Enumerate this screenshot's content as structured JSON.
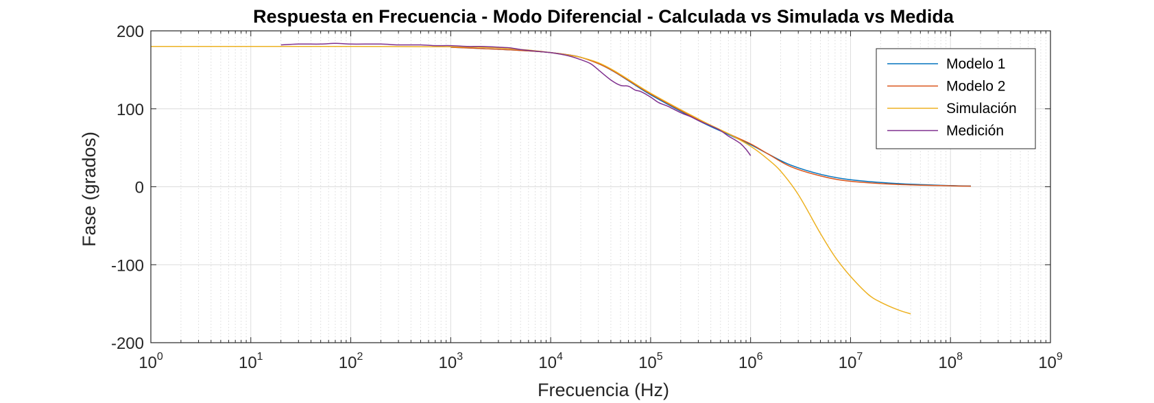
{
  "chart_data": {
    "type": "line",
    "title": "Respuesta en Frecuencia - Modo Diferencial - Calculada vs Simulada vs Medida",
    "xlabel": "Frecuencia (Hz)",
    "ylabel": "Fase (grados)",
    "xscale": "log",
    "xlim": [
      1,
      1000000000
    ],
    "ylim": [
      -200,
      200
    ],
    "x_ticks": [
      {
        "base": "10",
        "exp": "0"
      },
      {
        "base": "10",
        "exp": "1"
      },
      {
        "base": "10",
        "exp": "2"
      },
      {
        "base": "10",
        "exp": "3"
      },
      {
        "base": "10",
        "exp": "4"
      },
      {
        "base": "10",
        "exp": "5"
      },
      {
        "base": "10",
        "exp": "6"
      },
      {
        "base": "10",
        "exp": "7"
      },
      {
        "base": "10",
        "exp": "8"
      },
      {
        "base": "10",
        "exp": "9"
      }
    ],
    "y_ticks": [
      "200",
      "100",
      "0",
      "-100",
      "-200"
    ],
    "grid": true,
    "legend_position": "top-right",
    "series": [
      {
        "name": "Modelo 1",
        "color": "#0072BD",
        "x": [
          1000,
          10000,
          30000,
          100000,
          300000,
          600000,
          1000000,
          1500000,
          2500000,
          5000000,
          10000000,
          30000000,
          100000000,
          160000000
        ],
        "y": [
          179,
          172,
          158,
          118,
          85,
          67,
          54,
          42,
          28,
          16,
          9,
          4,
          1.5,
          1
        ]
      },
      {
        "name": "Modelo 2",
        "color": "#D95319",
        "x": [
          1000,
          10000,
          30000,
          100000,
          300000,
          600000,
          1000000,
          1500000,
          2500000,
          5000000,
          10000000,
          30000000,
          100000000,
          160000000
        ],
        "y": [
          179,
          172,
          158,
          119,
          86,
          68,
          55,
          42,
          26,
          14,
          7,
          3,
          1.2,
          0.8
        ]
      },
      {
        "name": "Simulación",
        "color": "#EDB120",
        "x": [
          1,
          10,
          100,
          1000,
          3000,
          10000,
          30000,
          100000,
          300000,
          600000,
          1000000,
          1500000,
          2000000,
          3000000,
          5000000,
          7000000,
          10000000,
          15000000,
          20000000,
          30000000,
          40000000
        ],
        "y": [
          180,
          180,
          180,
          179.5,
          178,
          172,
          159,
          120,
          87,
          68,
          52,
          35,
          20,
          -10,
          -60,
          -90,
          -115,
          -138,
          -148,
          -158,
          -163
        ]
      },
      {
        "name": "Medición",
        "color": "#7E2F8E",
        "x": [
          20,
          30,
          50,
          70,
          100,
          200,
          300,
          500,
          700,
          1000,
          1500,
          2000,
          3000,
          4000,
          5000,
          7000,
          10000,
          15000,
          20000,
          25000,
          30000,
          40000,
          50000,
          60000,
          70000,
          80000,
          100000,
          120000,
          150000,
          200000,
          250000,
          300000,
          400000,
          500000,
          600000,
          700000,
          800000,
          900000,
          1000000
        ],
        "y": [
          182,
          183,
          183,
          184,
          183,
          183,
          182,
          182,
          181,
          181,
          180,
          180,
          179,
          178,
          176,
          174,
          172,
          168,
          163,
          158,
          150,
          137,
          130,
          129,
          124,
          122,
          115,
          108,
          103,
          95,
          90,
          85,
          78,
          72,
          65,
          60,
          55,
          48,
          40
        ]
      }
    ]
  }
}
